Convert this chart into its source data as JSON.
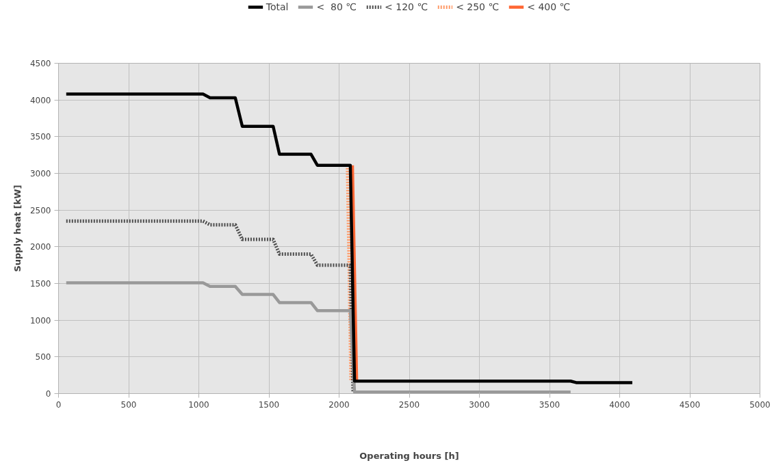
{
  "chart_data": {
    "type": "line",
    "xlabel": "Operating hours [h]",
    "ylabel": "Supply heat [kW]",
    "xlim": [
      0,
      5000
    ],
    "xticks": [
      0,
      500,
      1000,
      1500,
      2000,
      2500,
      3000,
      3500,
      4000,
      4500,
      5000
    ],
    "ylim": [
      0,
      4500
    ],
    "yticks": [
      0,
      500,
      1000,
      1500,
      2000,
      2500,
      3000,
      3500,
      4000,
      4500
    ],
    "grid": true,
    "legend": "top",
    "marker": "none",
    "line_style": "solid",
    "series": [
      {
        "name": "Total",
        "color": "#000000",
        "x": [
          55,
          1030,
          1080,
          1260,
          1310,
          1530,
          1575,
          1800,
          1845,
          2080,
          2110,
          3650,
          3690,
          4090
        ],
        "values": [
          4080,
          4080,
          4030,
          4030,
          3640,
          3640,
          3260,
          3260,
          3110,
          3110,
          170,
          170,
          150,
          150
        ]
      },
      {
        "name": "<  80 ℃",
        "color": "#999999",
        "x": [
          55,
          1030,
          1080,
          1260,
          1310,
          1530,
          1575,
          1800,
          1845,
          2080,
          2110,
          3650
        ],
        "values": [
          1510,
          1510,
          1460,
          1460,
          1350,
          1350,
          1240,
          1240,
          1130,
          1130,
          20,
          20
        ]
      },
      {
        "name": "< 120 ℃",
        "color": "#4d4d4d",
        "line_style": "dotted",
        "x": [
          55,
          1030,
          1080,
          1260,
          1310,
          1530,
          1575,
          1800,
          1845,
          2080,
          2100
        ],
        "values": [
          2350,
          2350,
          2300,
          2300,
          2100,
          2100,
          1900,
          1900,
          1750,
          1750,
          20
        ]
      },
      {
        "name": "< 250 ℃",
        "color": "#ff9966",
        "line_style": "dotted",
        "x": [
          2060,
          2085
        ],
        "values": [
          3110,
          170
        ]
      },
      {
        "name": "< 400 ℃",
        "color": "#ff6633",
        "x": [
          2095,
          2125
        ],
        "values": [
          3110,
          170
        ]
      }
    ]
  }
}
